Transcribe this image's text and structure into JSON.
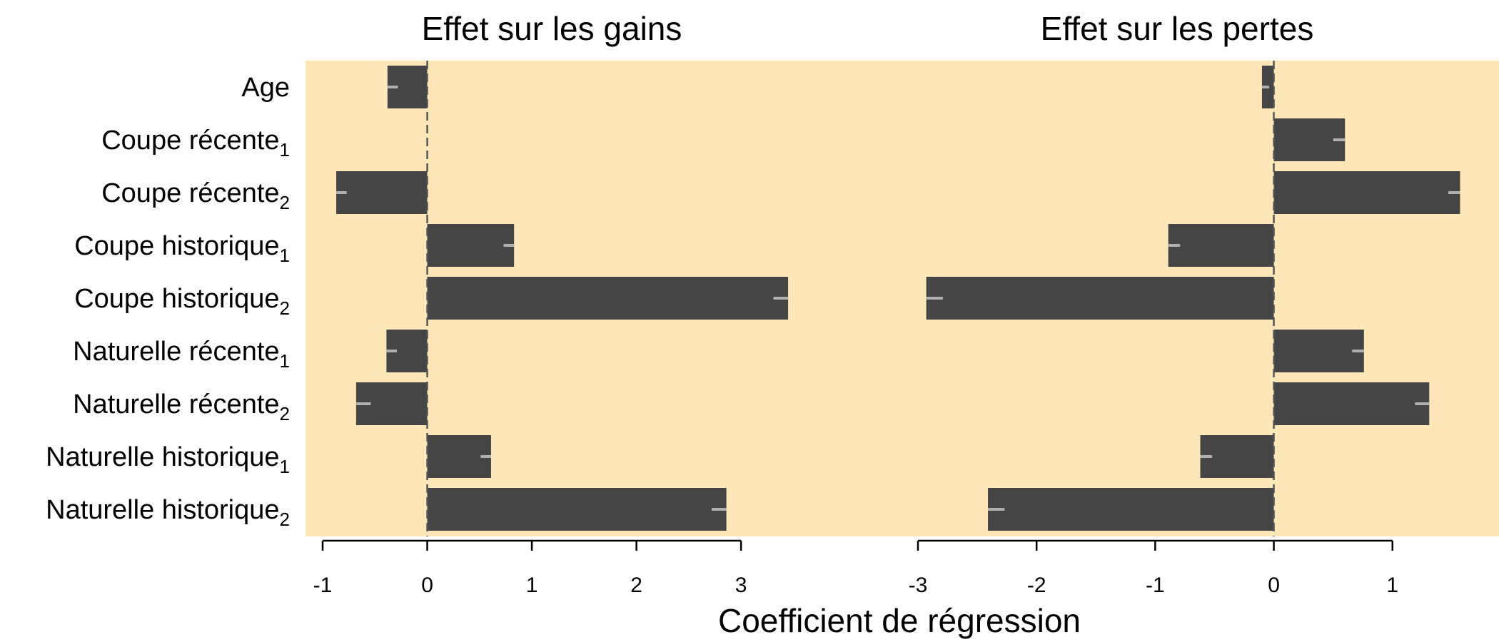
{
  "chart_data": {
    "type": "bar",
    "orientation": "horizontal",
    "xlabel": "Coefficient de régression",
    "background_color": "#FDE7B8",
    "bar_color": "#454545",
    "error_color": "#B0B0B0",
    "categories": [
      {
        "name": "Age",
        "sub": ""
      },
      {
        "name": "Coupe récente",
        "sub": "1"
      },
      {
        "name": "Coupe récente",
        "sub": "2"
      },
      {
        "name": "Coupe historique",
        "sub": "1"
      },
      {
        "name": "Coupe historique",
        "sub": "2"
      },
      {
        "name": "Naturelle récente",
        "sub": "1"
      },
      {
        "name": "Naturelle récente",
        "sub": "2"
      },
      {
        "name": "Naturelle historique",
        "sub": "1"
      },
      {
        "name": "Naturelle historique",
        "sub": "2"
      }
    ],
    "panels": [
      {
        "title": "Effet sur les gains",
        "xlim": [
          -1,
          4.2
        ],
        "ticks": [
          -1,
          0,
          1,
          2,
          3
        ],
        "tick_labels": [
          "-1",
          "0",
          "1",
          "2",
          "3"
        ],
        "values": [
          -0.38,
          0.0,
          -0.87,
          0.83,
          3.45,
          -0.39,
          -0.68,
          0.61,
          2.86
        ],
        "errors": [
          0.05,
          0.0,
          0.05,
          0.05,
          0.07,
          0.05,
          0.07,
          0.05,
          0.07
        ]
      },
      {
        "title": "Effet sur les pertes",
        "xlim": [
          -3,
          1.85
        ],
        "ticks": [
          -3,
          -2,
          -1,
          0,
          1
        ],
        "tick_labels": [
          "-3",
          "-2",
          "-1",
          "0",
          "1"
        ],
        "values": [
          -0.1,
          0.6,
          1.57,
          -0.89,
          -2.93,
          0.76,
          1.31,
          -0.62,
          -2.41
        ],
        "errors": [
          0.03,
          0.05,
          0.05,
          0.05,
          0.07,
          0.05,
          0.06,
          0.05,
          0.07
        ]
      }
    ]
  }
}
